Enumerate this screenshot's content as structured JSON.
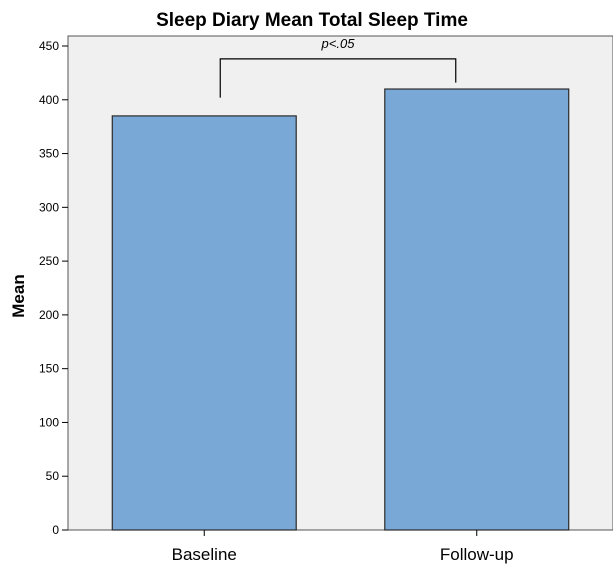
{
  "chart_data": {
    "type": "bar",
    "title": "Sleep Diary Mean Total Sleep Time",
    "xlabel": "",
    "ylabel": "Mean",
    "categories": [
      "Baseline",
      "Follow-up"
    ],
    "values": [
      385,
      410
    ],
    "ylim": [
      0,
      450
    ],
    "yticks": [
      "0",
      "50",
      "100",
      "150",
      "200",
      "250",
      "300",
      "350",
      "400",
      "450"
    ],
    "grid": false,
    "annotation": "p<.05",
    "colors": {
      "bar_fill": "#79a7d6",
      "bar_stroke": "#2b2b2b",
      "plot_background": "#f0f0f0"
    }
  }
}
